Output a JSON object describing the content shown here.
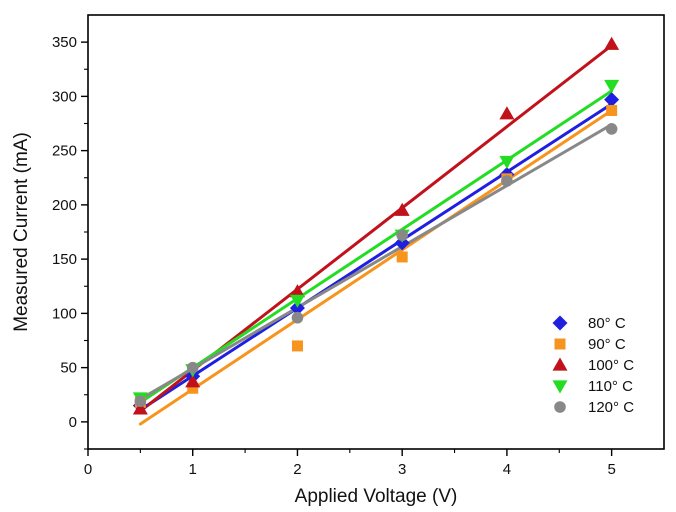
{
  "chart_data": {
    "type": "scatter",
    "title": "",
    "xlabel": "Applied Voltage (V)",
    "ylabel": "Measured Current (mA)",
    "xlim": [
      0,
      5.5
    ],
    "ylim": [
      -25,
      375
    ],
    "x_ticks": [
      0,
      1,
      2,
      3,
      4,
      5
    ],
    "x_tick_labels": [
      "0",
      "1",
      "2",
      "3",
      "4",
      "5"
    ],
    "y_ticks": [
      0,
      50,
      100,
      150,
      200,
      250,
      300,
      350
    ],
    "y_tick_labels": [
      "0",
      "50",
      "100",
      "150",
      "200",
      "250",
      "300",
      "350"
    ],
    "grid": false,
    "legend_position": "bottom-right",
    "series": [
      {
        "name": "80° C",
        "marker": "diamond",
        "color": "#1f1fe0",
        "x": [
          0.5,
          1,
          2,
          3,
          4,
          5
        ],
        "y": [
          15,
          42,
          105,
          165,
          228,
          297
        ],
        "fit": [
          [
            0.5,
            11
          ],
          [
            5,
            293
          ]
        ]
      },
      {
        "name": "90° C",
        "marker": "square",
        "color": "#f7941d",
        "x": [
          0.5,
          1,
          2,
          3,
          4,
          5
        ],
        "y": [
          18,
          31,
          70,
          152,
          224,
          287
        ],
        "fit": [
          [
            0.5,
            -2
          ],
          [
            5,
            287
          ]
        ]
      },
      {
        "name": "100° C",
        "marker": "triangle-up",
        "color": "#c1121c",
        "x": [
          0.5,
          1,
          2,
          3,
          4,
          5
        ],
        "y": [
          12,
          37,
          120,
          195,
          284,
          348
        ],
        "fit": [
          [
            0.5,
            10
          ],
          [
            5,
            347
          ]
        ]
      },
      {
        "name": "110° C",
        "marker": "triangle-down",
        "color": "#22dd22",
        "x": [
          0.5,
          1,
          2,
          3,
          4,
          5
        ],
        "y": [
          22,
          48,
          112,
          172,
          240,
          310
        ],
        "fit": [
          [
            0.5,
            18
          ],
          [
            5,
            305
          ]
        ]
      },
      {
        "name": "120° C",
        "marker": "circle",
        "color": "#888888",
        "x": [
          0.5,
          1,
          2,
          3,
          4,
          5
        ],
        "y": [
          19,
          50,
          96,
          172,
          222,
          270
        ],
        "fit": [
          [
            0.5,
            21
          ],
          [
            5,
            274
          ]
        ]
      }
    ]
  }
}
